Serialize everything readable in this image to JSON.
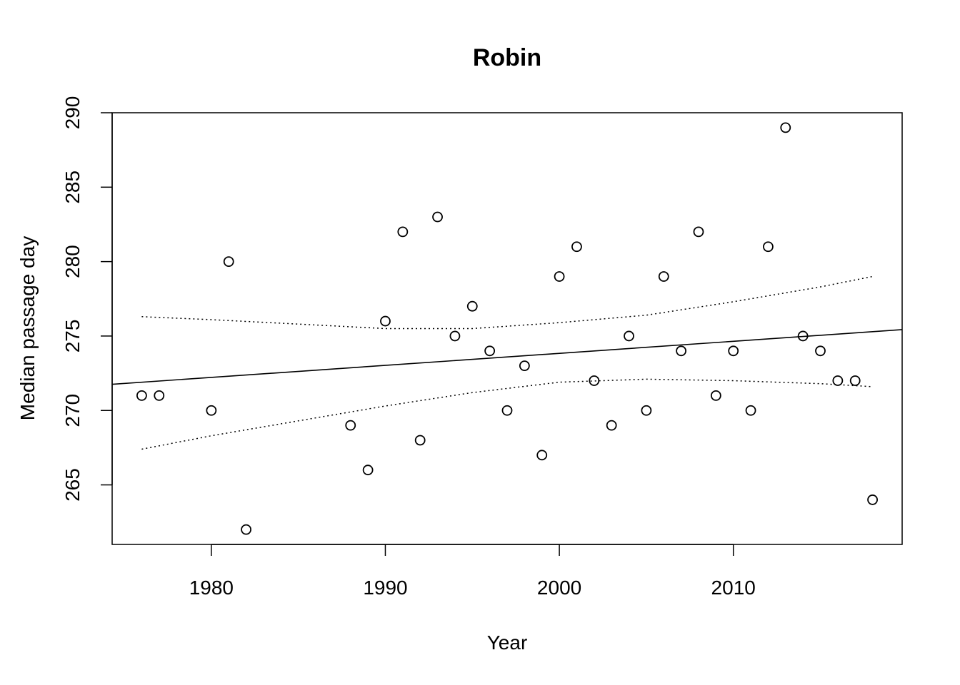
{
  "chart_data": {
    "type": "scatter",
    "title": "Robin",
    "xlabel": "Year",
    "ylabel": "Median passage day",
    "xlim": [
      1974.3,
      2019.7
    ],
    "ylim": [
      261,
      290
    ],
    "xticks": [
      1980,
      1990,
      2000,
      2010
    ],
    "yticks": [
      265,
      270,
      275,
      280,
      285,
      290
    ],
    "grid": false,
    "legend": "none",
    "points": [
      {
        "x": 1976,
        "y": 271
      },
      {
        "x": 1977,
        "y": 271
      },
      {
        "x": 1980,
        "y": 270
      },
      {
        "x": 1981,
        "y": 280
      },
      {
        "x": 1982,
        "y": 262
      },
      {
        "x": 1988,
        "y": 269
      },
      {
        "x": 1989,
        "y": 266
      },
      {
        "x": 1990,
        "y": 276
      },
      {
        "x": 1991,
        "y": 282
      },
      {
        "x": 1992,
        "y": 268
      },
      {
        "x": 1993,
        "y": 283
      },
      {
        "x": 1994,
        "y": 275
      },
      {
        "x": 1995,
        "y": 277
      },
      {
        "x": 1996,
        "y": 274
      },
      {
        "x": 1997,
        "y": 270
      },
      {
        "x": 1998,
        "y": 273
      },
      {
        "x": 1999,
        "y": 267
      },
      {
        "x": 2000,
        "y": 279
      },
      {
        "x": 2001,
        "y": 281
      },
      {
        "x": 2002,
        "y": 272
      },
      {
        "x": 2003,
        "y": 269
      },
      {
        "x": 2004,
        "y": 275
      },
      {
        "x": 2005,
        "y": 270
      },
      {
        "x": 2006,
        "y": 279
      },
      {
        "x": 2007,
        "y": 274
      },
      {
        "x": 2008,
        "y": 282
      },
      {
        "x": 2009,
        "y": 271
      },
      {
        "x": 2010,
        "y": 274
      },
      {
        "x": 2011,
        "y": 270
      },
      {
        "x": 2012,
        "y": 281
      },
      {
        "x": 2013,
        "y": 289
      },
      {
        "x": 2014,
        "y": 275
      },
      {
        "x": 2015,
        "y": 274
      },
      {
        "x": 2016,
        "y": 272
      },
      {
        "x": 2017,
        "y": 272
      },
      {
        "x": 2018,
        "y": 264
      }
    ],
    "fit_line": {
      "x": [
        1974.3,
        2019.7
      ],
      "y": [
        271.76,
        275.43
      ]
    },
    "confidence_upper": {
      "x": [
        1976,
        1980,
        1985,
        1990,
        1995,
        2000,
        2005,
        2010,
        2015,
        2018
      ],
      "y": [
        276.3,
        276.1,
        275.8,
        275.5,
        275.5,
        275.9,
        276.4,
        277.3,
        278.3,
        279.0
      ]
    },
    "confidence_lower": {
      "x": [
        1976,
        1980,
        1985,
        1990,
        1995,
        2000,
        2005,
        2010,
        2015,
        2018
      ],
      "y": [
        267.4,
        268.3,
        269.3,
        270.3,
        271.2,
        271.9,
        272.1,
        272.0,
        271.8,
        271.6
      ]
    }
  }
}
